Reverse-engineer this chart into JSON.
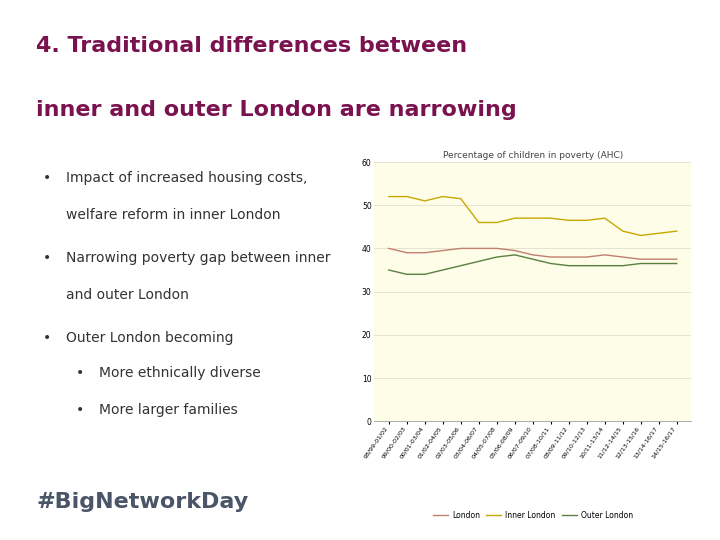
{
  "title_line1": "4. Traditional differences between",
  "title_line2": "inner and outer London are narrowing",
  "title_color": "#7B1250",
  "background_color": "#FFFFFF",
  "footer_text": "#BigNetworkDay",
  "footer_color": "#4A5568",
  "chart_title": "Percentage of children in poverty (AHC)",
  "chart_title_color": "#444444",
  "x_labels": [
    "98/99-01/02",
    "99/00-02/03",
    "00/01-03/04",
    "01/02-04/05",
    "02/03-05/06",
    "03/04-06/07",
    "04/05-07/08",
    "05/06-08/09",
    "06/07-09/10",
    "07/08-10/11",
    "08/09-11/12",
    "09/10-12/13",
    "10/11-13/14",
    "11/12-14/15",
    "12/13-15/16",
    "13/14-16/17",
    "14/15-16/17"
  ],
  "london_data": [
    40,
    39,
    39,
    39.5,
    40,
    40,
    40,
    39.5,
    38.5,
    38,
    38,
    38,
    38.5,
    38,
    37.5,
    37.5,
    37.5
  ],
  "inner_london_data": [
    52,
    52,
    51,
    52,
    51.5,
    46,
    46,
    47,
    47,
    47,
    46.5,
    46.5,
    47,
    44,
    43,
    43.5,
    44
  ],
  "outer_london_data": [
    35,
    34,
    34,
    35,
    36,
    37,
    38,
    38.5,
    37.5,
    36.5,
    36,
    36,
    36,
    36,
    36.5,
    36.5,
    36.5
  ],
  "london_color": "#C08070",
  "inner_london_color": "#C8A800",
  "outer_london_color": "#5A8040",
  "y_min": 0,
  "y_max": 60,
  "y_ticks": [
    0,
    10,
    20,
    30,
    40,
    50,
    60
  ],
  "chart_bg_color": "#FDFDE8",
  "grid_color": "#E0E0CC",
  "title_fontsize": 16,
  "bullet_fontsize": 10,
  "footer_fontsize": 16
}
